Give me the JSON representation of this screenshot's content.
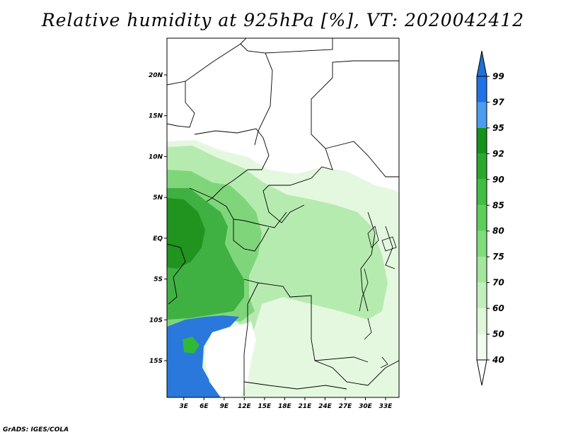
{
  "title": "Relative humidity at 925hPa [%], VT: 2020042412",
  "footer": "GrADS: IGES/COLA",
  "map": {
    "lat_labels": [
      "20N",
      "15N",
      "10N",
      "5N",
      "EQ",
      "5S",
      "10S",
      "15S"
    ],
    "lat_values": [
      20,
      15,
      10,
      5,
      0,
      -5,
      -10,
      -15
    ],
    "lon_labels": [
      "3E",
      "6E",
      "9E",
      "12E",
      "15E",
      "18E",
      "21E",
      "24E",
      "27E",
      "30E",
      "33E"
    ],
    "lon_values": [
      3,
      6,
      9,
      12,
      15,
      18,
      21,
      24,
      27,
      30,
      33
    ],
    "lon_range": [
      0.5,
      35
    ],
    "lat_range": [
      -19.5,
      24.5
    ]
  },
  "colorbar": {
    "labels": [
      "99",
      "97",
      "95",
      "92",
      "90",
      "85",
      "80",
      "75",
      "70",
      "60",
      "50",
      "40"
    ],
    "colors": [
      "#0a5ecc",
      "#1f73e6",
      "#4a9cef",
      "#14921b",
      "#29a82e",
      "#3fbe42",
      "#5ccf5a",
      "#7fdc7a",
      "#a2e79d",
      "#c2f0bd",
      "#def8d9",
      "#f2fdf0"
    ],
    "top_color": "#1f6fd6"
  },
  "colors": {
    "dark_green": "#2e9b33",
    "mid_green": "#5cc85c",
    "light_green": "#a8e6a2",
    "pale_green": "#e0f7dc",
    "blue": "#2a78dc"
  }
}
